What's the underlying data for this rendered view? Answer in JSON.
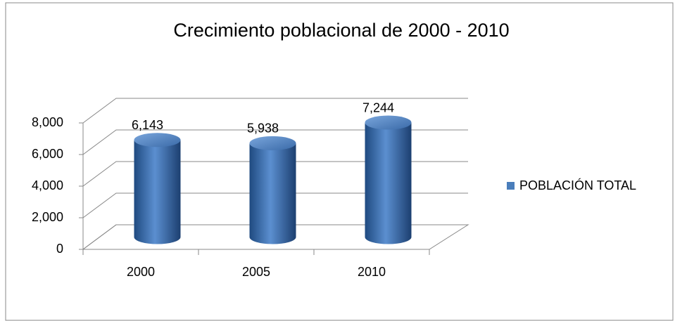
{
  "chart_data": {
    "type": "bar3d",
    "title": "Crecimiento poblacional de 2000 - 2010",
    "categories": [
      "2000",
      "2005",
      "2010"
    ],
    "series": [
      {
        "name": "POBLACIÓN TOTAL",
        "color": "#4a7ebb",
        "values": [
          6143,
          5938,
          7244
        ],
        "value_labels": [
          "6,143",
          "5,938",
          "7,244"
        ]
      }
    ],
    "ylim": [
      0,
      8000
    ],
    "yticks": [
      0,
      {
        "value": 2000,
        "label": "2,000"
      },
      {
        "value": 4000,
        "label": "4,000"
      },
      {
        "value": 6000,
        "label": "6,000"
      },
      {
        "value": 8000,
        "label": "8,000"
      }
    ],
    "grid": true,
    "legend": "right"
  }
}
